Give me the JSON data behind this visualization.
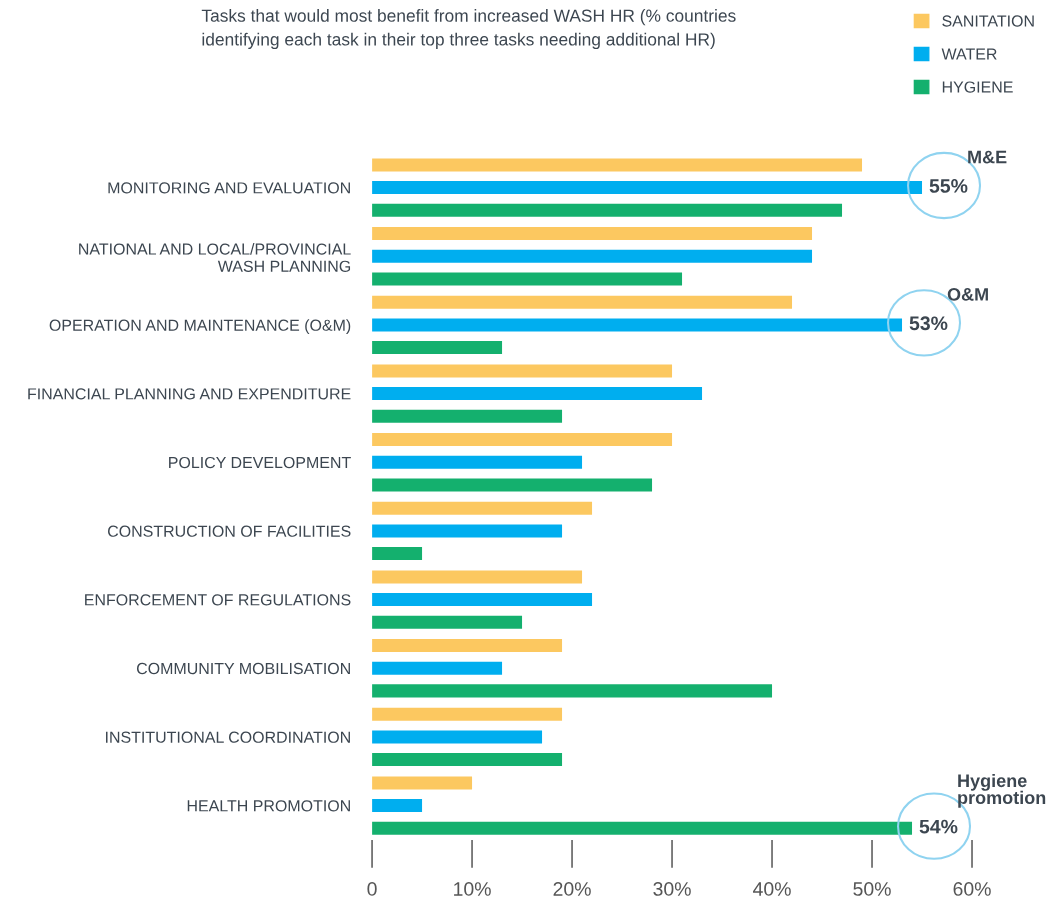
{
  "chart_data": {
    "type": "bar",
    "orientation": "horizontal",
    "title": "Tasks that would most benefit from increased WASH HR (% countries identifying each task in their top three tasks needing additional HR)",
    "categories": [
      "MONITORING AND EVALUATION",
      "NATIONAL AND LOCAL/PROVINCIAL\nWASH PLANNING",
      "OPERATION AND MAINTENANCE (O&M)",
      "FINANCIAL PLANNING AND EXPENDITURE",
      "POLICY DEVELOPMENT",
      "CONSTRUCTION OF FACILITIES",
      "ENFORCEMENT OF REGULATIONS",
      "COMMUNITY MOBILISATION",
      "INSTITUTIONAL COORDINATION",
      "HEALTH PROMOTION"
    ],
    "series": [
      {
        "name": "SANITATION",
        "color": "#fcc860",
        "values": [
          49,
          44,
          42,
          30,
          30,
          22,
          21,
          19,
          19,
          10
        ]
      },
      {
        "name": "WATER",
        "color": "#00aeef",
        "values": [
          55,
          44,
          53,
          33,
          21,
          19,
          22,
          13,
          17,
          5
        ],
        "value_labels": [
          "55%",
          null,
          "53%",
          null,
          null,
          null,
          null,
          null,
          null,
          null
        ]
      },
      {
        "name": "HYGIENE",
        "color": "#14b06e",
        "values": [
          47,
          31,
          13,
          19,
          28,
          5,
          15,
          40,
          19,
          54
        ],
        "value_labels": [
          null,
          null,
          null,
          null,
          null,
          null,
          null,
          null,
          null,
          "54%"
        ]
      }
    ],
    "xlim": [
      0,
      60
    ],
    "xticks": [
      0,
      {
        "value": 10,
        "label": "10%"
      },
      {
        "value": 20,
        "label": "20%"
      },
      {
        "value": 30,
        "label": "30%"
      },
      {
        "value": 40,
        "label": "40%"
      },
      {
        "value": 50,
        "label": "50%"
      },
      {
        "value": 60,
        "label": "60%"
      }
    ],
    "annotations": [
      "M&E",
      "O&M",
      "Hygiene\npromotion"
    ],
    "legend": "top right",
    "grid": false
  }
}
